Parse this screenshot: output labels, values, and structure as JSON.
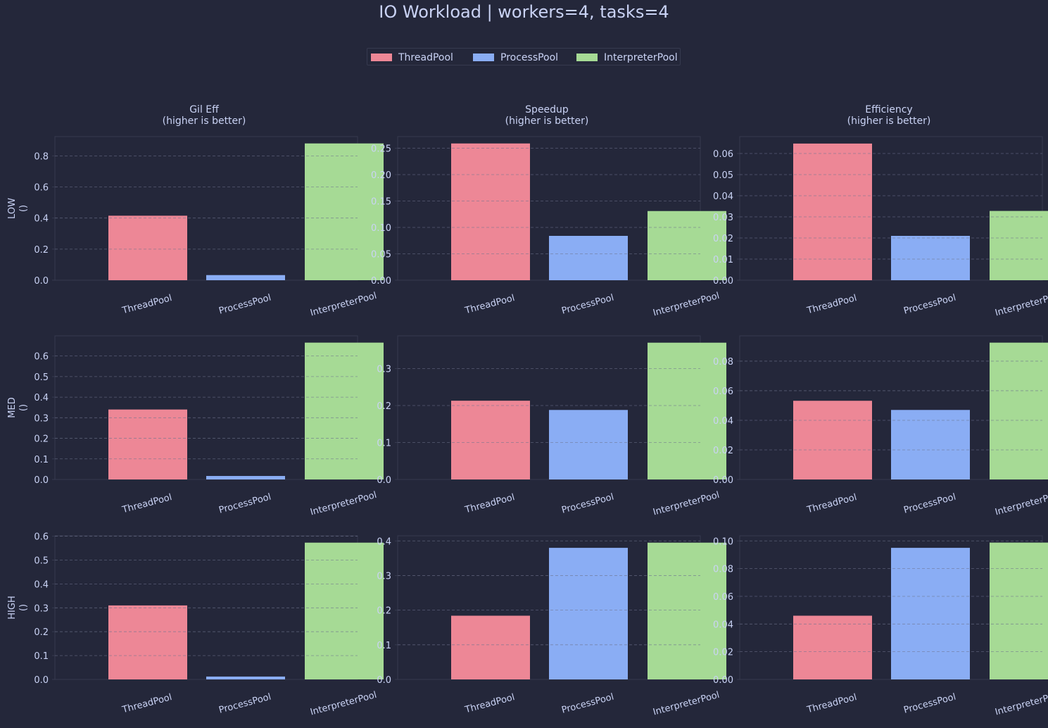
{
  "figure": {
    "title": "IO Workload | workers=4, tasks=4",
    "background": "#24273a",
    "panel_background": "#24273a",
    "panel_border": "#363a4f",
    "text_color": "#cad3f5",
    "grid_color": "#6e738d"
  },
  "legend": {
    "placement": "top-center",
    "items": [
      {
        "label": "ThreadPool",
        "color": "#ed8796"
      },
      {
        "label": "ProcessPool",
        "color": "#8aadf4"
      },
      {
        "label": "InterpreterPool",
        "color": "#a6da95"
      }
    ]
  },
  "columns": [
    {
      "title": "Gil Eff",
      "subtitle": "(higher is better)"
    },
    {
      "title": "Speedup",
      "subtitle": "(higher is better)"
    },
    {
      "title": "Efficiency",
      "subtitle": "(higher is better)"
    }
  ],
  "rows": [
    {
      "label": "LOW",
      "sublabel": "()"
    },
    {
      "label": "MED",
      "sublabel": "()"
    },
    {
      "label": "HIGH",
      "sublabel": "()"
    }
  ],
  "chart_data": [
    {
      "type": "bar",
      "row": "LOW",
      "metric": "Gil Eff",
      "categories": [
        "ThreadPool",
        "ProcessPool",
        "InterpreterPool"
      ],
      "values": [
        0.415,
        0.033,
        0.88
      ],
      "ylim": [
        0,
        0.924
      ],
      "yticks": [
        "0.0",
        "0.2",
        "0.4",
        "0.6",
        "0.8"
      ],
      "ytick_values": [
        0,
        0.2,
        0.4,
        0.6,
        0.8
      ],
      "grid": true
    },
    {
      "type": "bar",
      "row": "LOW",
      "metric": "Speedup",
      "categories": [
        "ThreadPool",
        "ProcessPool",
        "InterpreterPool"
      ],
      "values": [
        0.259,
        0.084,
        0.131
      ],
      "ylim": [
        0,
        0.272
      ],
      "yticks": [
        "0.00",
        "0.05",
        "0.10",
        "0.15",
        "0.20",
        "0.25"
      ],
      "ytick_values": [
        0,
        0.05,
        0.1,
        0.15,
        0.2,
        0.25
      ],
      "grid": true
    },
    {
      "type": "bar",
      "row": "LOW",
      "metric": "Efficiency",
      "categories": [
        "ThreadPool",
        "ProcessPool",
        "InterpreterPool"
      ],
      "values": [
        0.0647,
        0.021,
        0.0328
      ],
      "ylim": [
        0,
        0.068
      ],
      "yticks": [
        "0.00",
        "0.01",
        "0.02",
        "0.03",
        "0.04",
        "0.05",
        "0.06"
      ],
      "ytick_values": [
        0,
        0.01,
        0.02,
        0.03,
        0.04,
        0.05,
        0.06
      ],
      "grid": true
    },
    {
      "type": "bar",
      "row": "MED",
      "metric": "Gil Eff",
      "categories": [
        "ThreadPool",
        "ProcessPool",
        "InterpreterPool"
      ],
      "values": [
        0.34,
        0.017,
        0.665
      ],
      "ylim": [
        0,
        0.698
      ],
      "yticks": [
        "0.0",
        "0.1",
        "0.2",
        "0.3",
        "0.4",
        "0.5",
        "0.6"
      ],
      "ytick_values": [
        0,
        0.1,
        0.2,
        0.3,
        0.4,
        0.5,
        0.6
      ],
      "grid": true
    },
    {
      "type": "bar",
      "row": "MED",
      "metric": "Speedup",
      "categories": [
        "ThreadPool",
        "ProcessPool",
        "InterpreterPool"
      ],
      "values": [
        0.213,
        0.188,
        0.37
      ],
      "ylim": [
        0,
        0.3885
      ],
      "yticks": [
        "0.0",
        "0.1",
        "0.2",
        "0.3"
      ],
      "ytick_values": [
        0,
        0.1,
        0.2,
        0.3
      ],
      "grid": true
    },
    {
      "type": "bar",
      "row": "MED",
      "metric": "Efficiency",
      "categories": [
        "ThreadPool",
        "ProcessPool",
        "InterpreterPool"
      ],
      "values": [
        0.0532,
        0.047,
        0.0925
      ],
      "ylim": [
        0,
        0.0971
      ],
      "yticks": [
        "0.00",
        "0.02",
        "0.04",
        "0.06",
        "0.08"
      ],
      "ytick_values": [
        0,
        0.02,
        0.04,
        0.06,
        0.08
      ],
      "grid": true
    },
    {
      "type": "bar",
      "row": "HIGH",
      "metric": "Gil Eff",
      "categories": [
        "ThreadPool",
        "ProcessPool",
        "InterpreterPool"
      ],
      "values": [
        0.31,
        0.012,
        0.573
      ],
      "ylim": [
        0,
        0.6017
      ],
      "yticks": [
        "0.0",
        "0.1",
        "0.2",
        "0.3",
        "0.4",
        "0.5",
        "0.6"
      ],
      "ytick_values": [
        0,
        0.1,
        0.2,
        0.3,
        0.4,
        0.5,
        0.6
      ],
      "grid": true
    },
    {
      "type": "bar",
      "row": "HIGH",
      "metric": "Speedup",
      "categories": [
        "ThreadPool",
        "ProcessPool",
        "InterpreterPool"
      ],
      "values": [
        0.184,
        0.38,
        0.395
      ],
      "ylim": [
        0,
        0.4148
      ],
      "yticks": [
        "0.0",
        "0.1",
        "0.2",
        "0.3",
        "0.4"
      ],
      "ytick_values": [
        0,
        0.1,
        0.2,
        0.3,
        0.4
      ],
      "grid": true
    },
    {
      "type": "bar",
      "row": "HIGH",
      "metric": "Efficiency",
      "categories": [
        "ThreadPool",
        "ProcessPool",
        "InterpreterPool"
      ],
      "values": [
        0.046,
        0.095,
        0.0988
      ],
      "ylim": [
        0,
        0.1037
      ],
      "yticks": [
        "0.00",
        "0.02",
        "0.04",
        "0.06",
        "0.08",
        "0.10"
      ],
      "ytick_values": [
        0,
        0.02,
        0.04,
        0.06,
        0.08,
        0.1
      ],
      "grid": true
    }
  ]
}
